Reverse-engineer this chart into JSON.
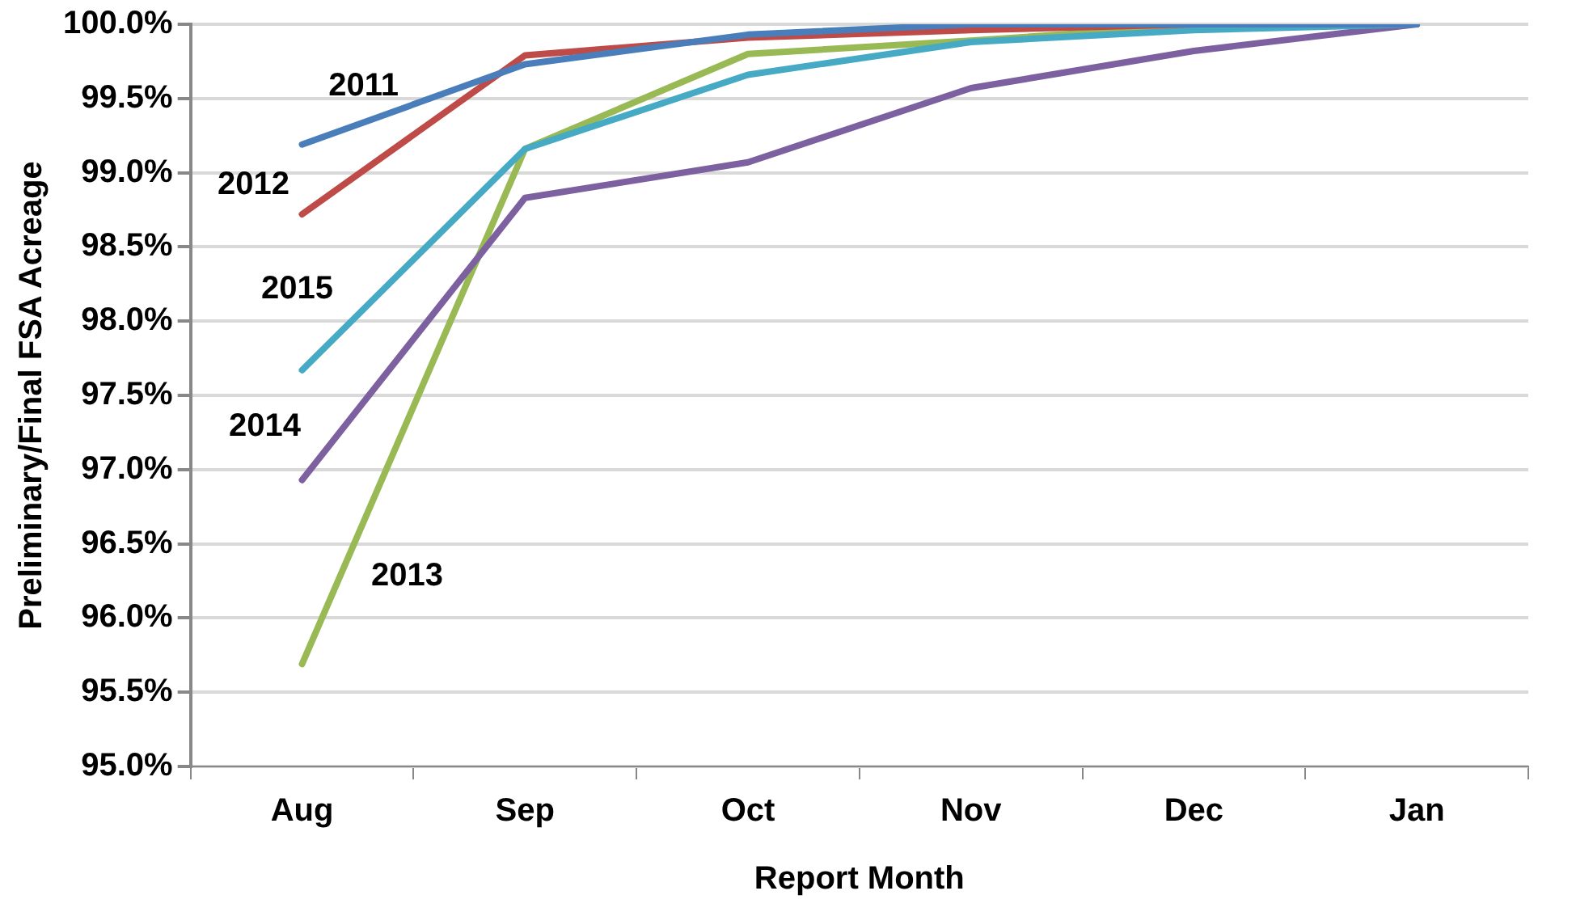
{
  "chart_data": {
    "type": "line",
    "xlabel": "Report Month",
    "ylabel": "Preliminary/Final FSA Acreage",
    "categories": [
      "Aug",
      "Sep",
      "Oct",
      "Nov",
      "Dec",
      "Jan"
    ],
    "series": [
      {
        "name": "2011",
        "color": "#4a7ebb",
        "values": [
          99.19,
          99.73,
          99.93,
          100,
          100,
          100
        ]
      },
      {
        "name": "2012",
        "color": "#be4b48",
        "values": [
          98.72,
          99.79,
          99.91,
          99.96,
          100,
          100
        ]
      },
      {
        "name": "2015",
        "color": "#46aac5",
        "values": [
          97.67,
          99.16,
          99.66,
          99.88,
          99.96,
          100
        ]
      },
      {
        "name": "2014",
        "color": "#7d60a0",
        "values": [
          96.93,
          98.83,
          99.07,
          99.57,
          99.82,
          100
        ]
      },
      {
        "name": "2013",
        "color": "#98b954",
        "values": [
          95.69,
          99.16,
          99.8,
          99.89,
          99.99,
          100
        ]
      }
    ],
    "ylim": [
      95,
      100
    ],
    "yticks": [
      {
        "value": 95,
        "label": "95.0%"
      },
      {
        "value": 95.5,
        "label": "95.5%"
      },
      {
        "value": 96,
        "label": "96.0%"
      },
      {
        "value": 96.5,
        "label": "96.5%"
      },
      {
        "value": 97,
        "label": "97.0%"
      },
      {
        "value": 97.5,
        "label": "97.5%"
      },
      {
        "value": 98,
        "label": "98.0%"
      },
      {
        "value": 98.5,
        "label": "98.5%"
      },
      {
        "value": 99,
        "label": "99.0%"
      },
      {
        "value": 99.5,
        "label": "99.5%"
      },
      {
        "value": 100,
        "label": "100.0%"
      }
    ],
    "grid": "y",
    "legend": false,
    "marker": "none",
    "line_style": "solid"
  }
}
